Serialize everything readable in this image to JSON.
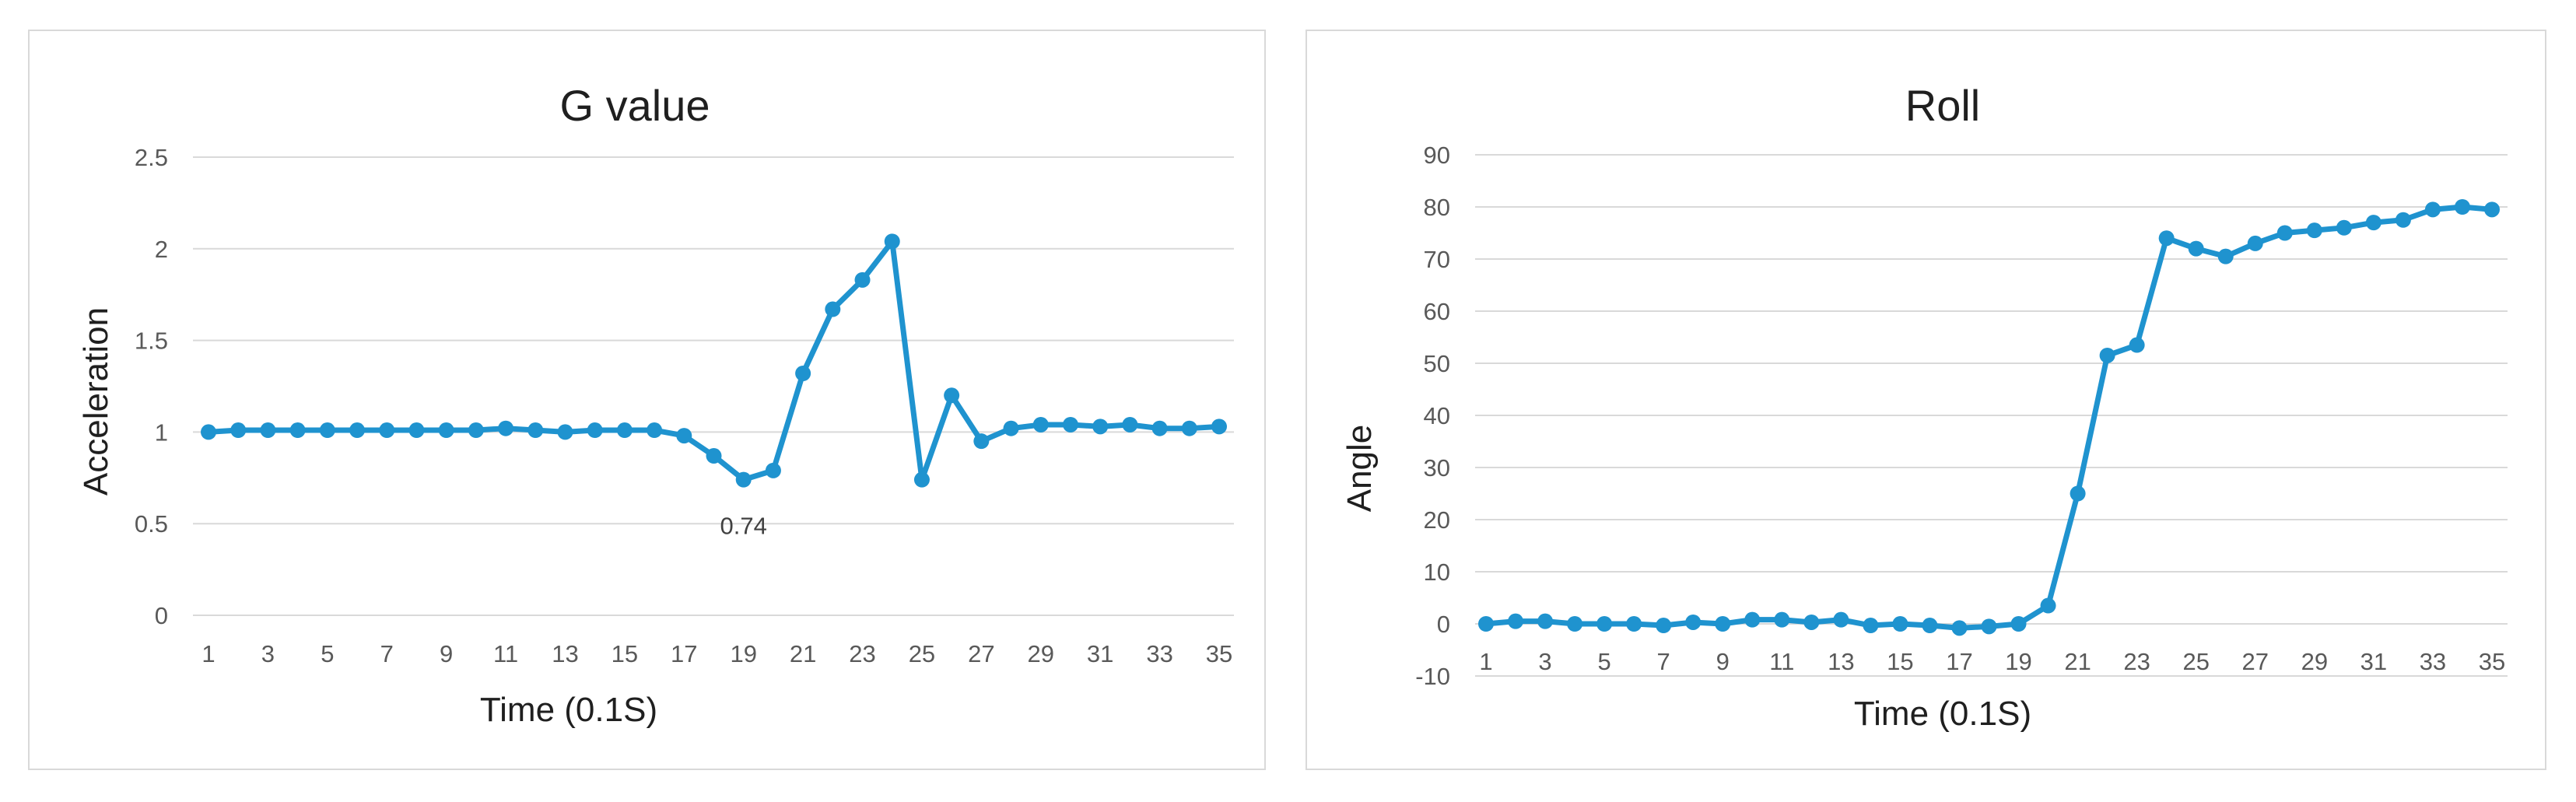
{
  "chart_data": [
    {
      "type": "line",
      "title": "G value",
      "xlabel": "Time (0.1S)",
      "ylabel": "Acceleration",
      "ylim": [
        0,
        2.5
      ],
      "y_ticks": [
        0,
        0.5,
        1,
        1.5,
        2,
        2.5
      ],
      "y_tick_labels": [
        "0",
        "0.5",
        "1",
        "1.5",
        "2",
        "2.5"
      ],
      "x": [
        1,
        2,
        3,
        4,
        5,
        6,
        7,
        8,
        9,
        10,
        11,
        12,
        13,
        14,
        15,
        16,
        17,
        18,
        19,
        20,
        21,
        22,
        23,
        24,
        25,
        26,
        27,
        28,
        29,
        30,
        31,
        32,
        33,
        34,
        35
      ],
      "x_tick_labels": [
        "1",
        "3",
        "5",
        "7",
        "9",
        "11",
        "13",
        "15",
        "17",
        "19",
        "21",
        "23",
        "25",
        "27",
        "29",
        "31",
        "33",
        "35"
      ],
      "series": [
        {
          "color": "#1f93cf",
          "values": [
            1.0,
            1.01,
            1.01,
            1.01,
            1.01,
            1.01,
            1.01,
            1.01,
            1.01,
            1.01,
            1.02,
            1.01,
            1.0,
            1.01,
            1.01,
            1.01,
            0.98,
            0.87,
            0.74,
            0.79,
            1.32,
            1.67,
            1.83,
            2.04,
            0.74,
            1.2,
            0.95,
            1.02,
            1.04,
            1.04,
            1.03,
            1.04,
            1.02,
            1.02,
            1.03
          ]
        }
      ],
      "annotations": [
        {
          "x": 19,
          "text": "0.74"
        }
      ],
      "grid": true,
      "legend": "none"
    },
    {
      "type": "line",
      "title": "Roll",
      "xlabel": "Time (0.1S)",
      "ylabel": "Angle",
      "ylim": [
        -10,
        90
      ],
      "y_ticks": [
        -10,
        0,
        10,
        20,
        30,
        40,
        50,
        60,
        70,
        80,
        90
      ],
      "y_tick_labels": [
        "-10",
        "0",
        "10",
        "20",
        "30",
        "40",
        "50",
        "60",
        "70",
        "80",
        "90"
      ],
      "x": [
        1,
        2,
        3,
        4,
        5,
        6,
        7,
        8,
        9,
        10,
        11,
        12,
        13,
        14,
        15,
        16,
        17,
        18,
        19,
        20,
        21,
        22,
        23,
        24,
        25,
        26,
        27,
        28,
        29,
        30,
        31,
        32,
        33,
        34,
        35
      ],
      "x_tick_labels": [
        "1",
        "3",
        "5",
        "7",
        "9",
        "11",
        "13",
        "15",
        "17",
        "19",
        "21",
        "23",
        "25",
        "27",
        "29",
        "31",
        "33",
        "35"
      ],
      "series": [
        {
          "color": "#1f93cf",
          "values": [
            0.0,
            0.5,
            0.5,
            0.0,
            0.0,
            0.0,
            -0.3,
            0.3,
            0.0,
            0.8,
            0.8,
            0.3,
            0.8,
            -0.3,
            0.0,
            -0.3,
            -0.8,
            -0.5,
            0.0,
            3.5,
            25.0,
            51.5,
            53.5,
            74.0,
            72.0,
            70.5,
            73.0,
            75.0,
            75.5,
            76.0,
            77.0,
            77.5,
            79.5,
            80.0,
            79.5
          ]
        }
      ],
      "annotations": [],
      "grid": true,
      "legend": "none"
    }
  ]
}
